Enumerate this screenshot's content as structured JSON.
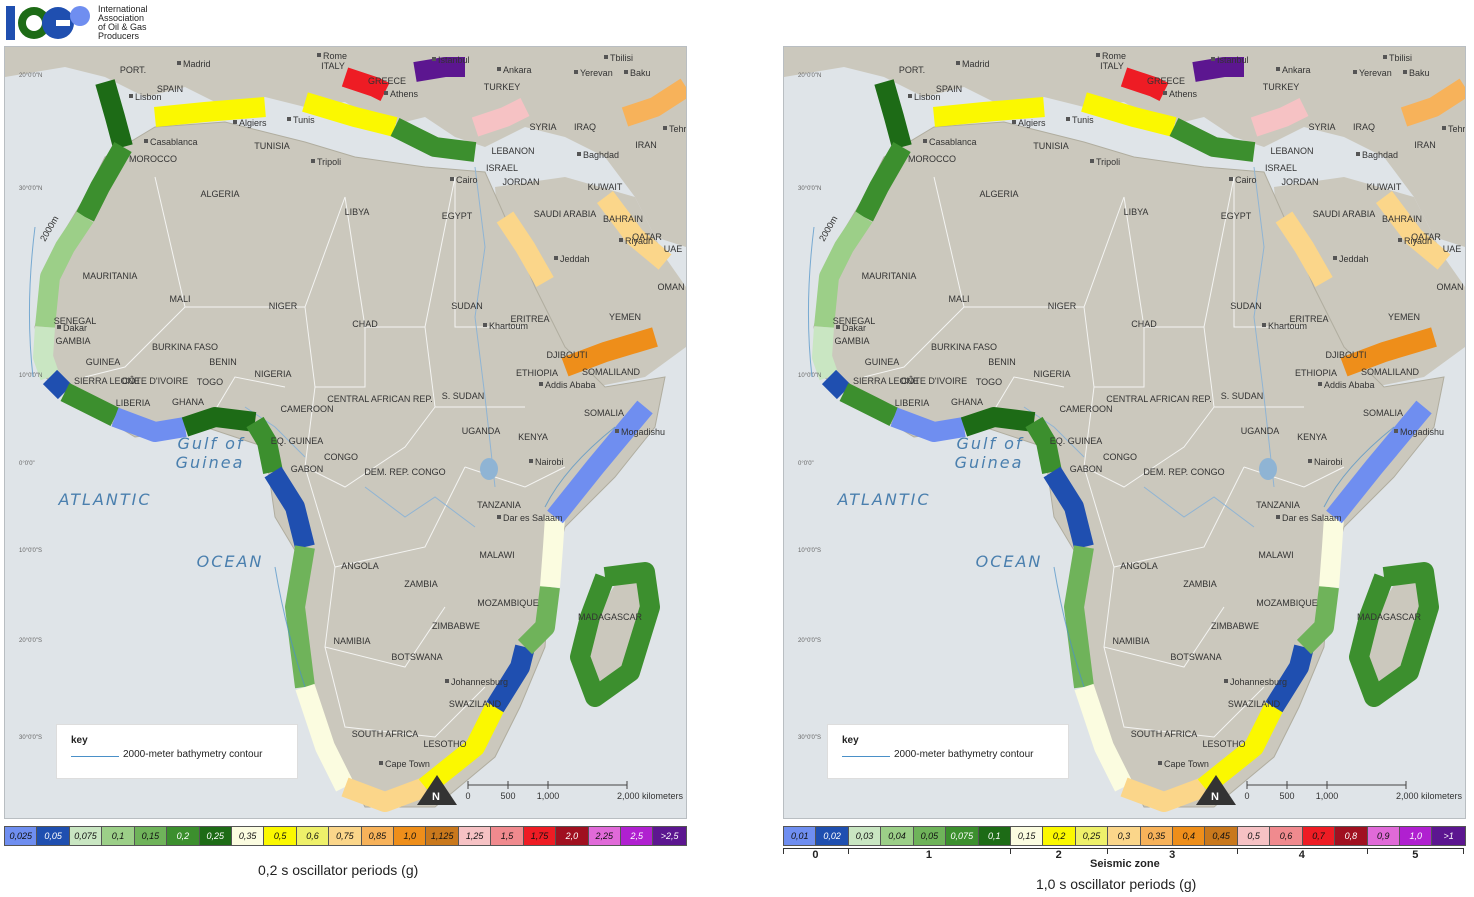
{
  "logo": {
    "mark": "IOGP",
    "lines": [
      "International",
      "Association",
      "of Oil & Gas",
      "Producers"
    ]
  },
  "map_labels": {
    "countries": [
      "PORT.",
      "SPAIN",
      "MOROCCO",
      "ALGERIA",
      "TUNISIA",
      "LIBYA",
      "EGYPT",
      "MAURITANIA",
      "MALI",
      "NIGER",
      "CHAD",
      "SUDAN",
      "ERITREA",
      "YEMEN",
      "OMAN",
      "SAUDI ARABIA",
      "JORDAN",
      "ISRAEL",
      "LEBANON",
      "SYRIA",
      "IRAQ",
      "IRAN",
      "TURKEY",
      "GREECE",
      "ITALY",
      "KUWAIT",
      "BAHRAIN",
      "QATAR",
      "UAE",
      "SENEGAL",
      "GAMBIA",
      "GUINEA",
      "SIERRA LEONE",
      "LIBERIA",
      "CÔTE D'IVOIRE",
      "BURKINA FASO",
      "GHANA",
      "TOGO",
      "BENIN",
      "NIGERIA",
      "CAMEROON",
      "CENTRAL AFRICAN REP.",
      "S. SUDAN",
      "ETHIOPIA",
      "DJIBOUTI",
      "SOMALILAND",
      "SOMALIA",
      "KENYA",
      "UGANDA",
      "EQ. GUINEA",
      "GABON",
      "CONGO",
      "DEM. REP. CONGO",
      "TANZANIA",
      "MALAWI",
      "ANGOLA",
      "ZAMBIA",
      "MOZAMBIQUE",
      "ZIMBABWE",
      "NAMIBIA",
      "BOTSWANA",
      "SOUTH AFRICA",
      "LESOTHO",
      "SWAZILAND",
      "MADAGASCAR"
    ],
    "cities": [
      "Madrid",
      "Lisbon",
      "Rome",
      "Istanbul",
      "Ankara",
      "Tbilisi",
      "Yerevan",
      "Baku",
      "Tehran",
      "Algiers",
      "Tunis",
      "Tripoli",
      "Athens",
      "Casablanca",
      "Cairo",
      "Baghdad",
      "Riyadh",
      "Jeddah",
      "Khartoum",
      "Addis Ababa",
      "Mogadishu",
      "Nairobi",
      "Dar es Salaam",
      "Dakar",
      "Johannesburg",
      "Cape Town"
    ],
    "seas": [
      "ATLANTIC",
      "OCEAN",
      "Gulf of",
      "Guinea"
    ],
    "lat": [
      "20°0'0\"N",
      "10°0'0\"N",
      "0°0'0\"",
      "10°0'0\"S",
      "20°0'0\"S",
      "30°0'0\"S",
      "30°0'0\"N"
    ],
    "contour": "2000m"
  },
  "key": {
    "title": "key",
    "item": "2000-meter bathymetry contour"
  },
  "scalebar": {
    "ticks": [
      "0",
      "500",
      "1,000",
      "2,000 kilometers"
    ],
    "north": "N"
  },
  "left_legend": {
    "caption": "0,2 s oscillator periods (g)",
    "swatches": [
      {
        "label": "0,025",
        "color": "#6f8ef0"
      },
      {
        "label": "0,05",
        "color": "#1f4fb0"
      },
      {
        "label": "0,075",
        "color": "#c9e6c2"
      },
      {
        "label": "0,1",
        "color": "#9ccf88"
      },
      {
        "label": "0,15",
        "color": "#6fb35a"
      },
      {
        "label": "0,2",
        "color": "#3c8f2e"
      },
      {
        "label": "0,25",
        "color": "#1d6b16"
      },
      {
        "label": "0,35",
        "color": "#fbfce0"
      },
      {
        "label": "0,5",
        "color": "#fbf800"
      },
      {
        "label": "0,6",
        "color": "#eef06a"
      },
      {
        "label": "0,75",
        "color": "#fbd68a"
      },
      {
        "label": "0,85",
        "color": "#f7b25a"
      },
      {
        "label": "1,0",
        "color": "#ee8e1a"
      },
      {
        "label": "1,125",
        "color": "#c9781c"
      },
      {
        "label": "1,25",
        "color": "#f6c2c4"
      },
      {
        "label": "1,5",
        "color": "#f08a8e"
      },
      {
        "label": "1,75",
        "color": "#ee1c24"
      },
      {
        "label": "2,0",
        "color": "#a01020"
      },
      {
        "label": "2,25",
        "color": "#e06ad8"
      },
      {
        "label": "2,5",
        "color": "#b020d0"
      },
      {
        "label": ">2,5",
        "color": "#5c1690"
      }
    ]
  },
  "right_legend": {
    "caption": "1,0 s oscillator periods (g)",
    "zone_title": "Seismic zone",
    "zones": [
      "0",
      "1",
      "2",
      "3",
      "4",
      "5"
    ],
    "swatches": [
      {
        "label": "0,01",
        "color": "#6f8ef0"
      },
      {
        "label": "0,02",
        "color": "#1f4fb0"
      },
      {
        "label": "0,03",
        "color": "#c9e6c2"
      },
      {
        "label": "0,04",
        "color": "#9ccf88"
      },
      {
        "label": "0,05",
        "color": "#6fb35a"
      },
      {
        "label": "0,075",
        "color": "#3c8f2e"
      },
      {
        "label": "0,1",
        "color": "#1d6b16"
      },
      {
        "label": "0,15",
        "color": "#fbfce0"
      },
      {
        "label": "0,2",
        "color": "#fbf800"
      },
      {
        "label": "0,25",
        "color": "#eef06a"
      },
      {
        "label": "0,3",
        "color": "#fbd68a"
      },
      {
        "label": "0,35",
        "color": "#f7b25a"
      },
      {
        "label": "0,4",
        "color": "#ee8e1a"
      },
      {
        "label": "0,45",
        "color": "#c9781c"
      },
      {
        "label": "0,5",
        "color": "#f6c2c4"
      },
      {
        "label": "0,6",
        "color": "#f08a8e"
      },
      {
        "label": "0,7",
        "color": "#ee1c24"
      },
      {
        "label": "0,8",
        "color": "#a01020"
      },
      {
        "label": "0,9",
        "color": "#e06ad8"
      },
      {
        "label": "1,0",
        "color": "#b020d0"
      },
      {
        "label": ">1",
        "color": "#5c1690"
      }
    ]
  },
  "colors": {
    "land": "#cbc8bd",
    "sea": "#dfe4e8",
    "border": "#f4f4f2",
    "water": "#8fb4d4"
  }
}
